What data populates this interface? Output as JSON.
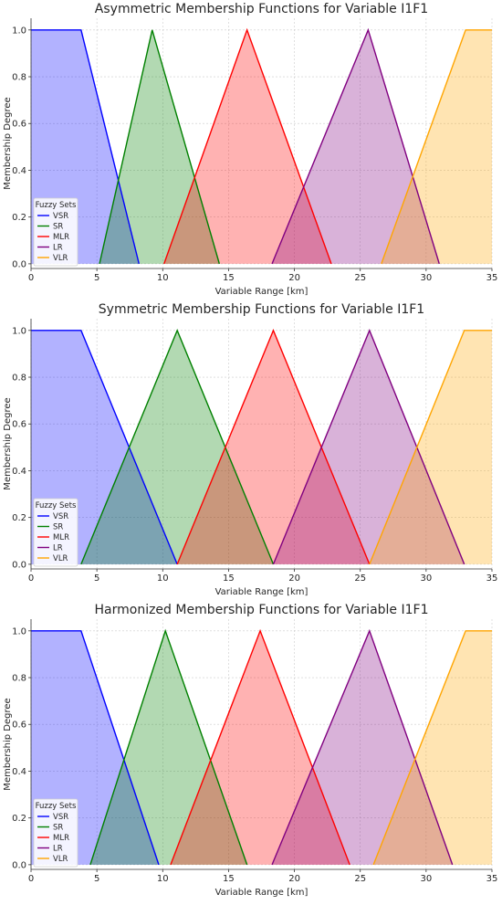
{
  "figure": {
    "colors": {
      "VSR": "#0000ff",
      "SR": "#008000",
      "MLR": "#ff0000",
      "LR": "#800080",
      "VLR": "#ffa500"
    }
  },
  "chart_data": [
    {
      "type": "area",
      "title": "Asymmetric Membership Functions for Variable I1F1",
      "xlabel": "Variable Range [km]",
      "ylabel": "Membership Degree",
      "xlim": [
        0,
        35
      ],
      "ylim": [
        -0.02,
        1.05
      ],
      "xticks": [
        "0",
        "5",
        "10",
        "15",
        "20",
        "25",
        "30",
        "35"
      ],
      "yticks": [
        "0.0",
        "0.2",
        "0.4",
        "0.6",
        "0.8",
        "1.0"
      ],
      "grid": true,
      "legend": {
        "title": "Fuzzy Sets",
        "placement": "bottom-left"
      },
      "series": [
        {
          "name": "VSR",
          "color": "#0000ff",
          "points": [
            [
              0,
              1.0
            ],
            [
              3.8,
              1.0
            ],
            [
              8.2,
              0
            ]
          ]
        },
        {
          "name": "SR",
          "color": "#008000",
          "points": [
            [
              5.2,
              0
            ],
            [
              9.2,
              1.0
            ],
            [
              14.3,
              0
            ]
          ]
        },
        {
          "name": "MLR",
          "color": "#ff0000",
          "points": [
            [
              10.1,
              0
            ],
            [
              16.4,
              1.0
            ],
            [
              22.8,
              0
            ]
          ]
        },
        {
          "name": "LR",
          "color": "#800080",
          "points": [
            [
              18.3,
              0
            ],
            [
              25.6,
              1.0
            ],
            [
              31.0,
              0
            ]
          ]
        },
        {
          "name": "VLR",
          "color": "#ffa500",
          "points": [
            [
              26.6,
              0
            ],
            [
              33.0,
              1.0
            ],
            [
              35.0,
              1.0
            ]
          ]
        }
      ]
    },
    {
      "type": "area",
      "title": "Symmetric Membership Functions for Variable I1F1",
      "xlabel": "Variable Range [km]",
      "ylabel": "Membership Degree",
      "xlim": [
        0,
        35
      ],
      "ylim": [
        -0.02,
        1.05
      ],
      "xticks": [
        "0",
        "5",
        "10",
        "15",
        "20",
        "25",
        "30",
        "35"
      ],
      "yticks": [
        "0.0",
        "0.2",
        "0.4",
        "0.6",
        "0.8",
        "1.0"
      ],
      "grid": true,
      "legend": {
        "title": "Fuzzy Sets",
        "placement": "bottom-left"
      },
      "series": [
        {
          "name": "VSR",
          "color": "#0000ff",
          "points": [
            [
              0,
              1.0
            ],
            [
              3.8,
              1.0
            ],
            [
              11.1,
              0
            ]
          ]
        },
        {
          "name": "SR",
          "color": "#008000",
          "points": [
            [
              3.8,
              0
            ],
            [
              11.1,
              1.0
            ],
            [
              18.4,
              0
            ]
          ]
        },
        {
          "name": "MLR",
          "color": "#ff0000",
          "points": [
            [
              11.1,
              0
            ],
            [
              18.4,
              1.0
            ],
            [
              25.7,
              0
            ]
          ]
        },
        {
          "name": "LR",
          "color": "#800080",
          "points": [
            [
              18.4,
              0
            ],
            [
              25.7,
              1.0
            ],
            [
              32.9,
              0
            ]
          ]
        },
        {
          "name": "VLR",
          "color": "#ffa500",
          "points": [
            [
              25.7,
              0
            ],
            [
              32.9,
              1.0
            ],
            [
              35.0,
              1.0
            ]
          ]
        }
      ]
    },
    {
      "type": "area",
      "title": "Harmonized Membership Functions for Variable I1F1",
      "xlabel": "Variable Range [km]",
      "ylabel": "Membership Degree",
      "xlim": [
        0,
        35
      ],
      "ylim": [
        -0.02,
        1.05
      ],
      "xticks": [
        "0",
        "5",
        "10",
        "15",
        "20",
        "25",
        "30",
        "35"
      ],
      "yticks": [
        "0.0",
        "0.2",
        "0.4",
        "0.6",
        "0.8",
        "1.0"
      ],
      "grid": true,
      "legend": {
        "title": "Fuzzy Sets",
        "placement": "bottom-left"
      },
      "series": [
        {
          "name": "VSR",
          "color": "#0000ff",
          "points": [
            [
              0,
              1.0
            ],
            [
              3.8,
              1.0
            ],
            [
              9.7,
              0
            ]
          ]
        },
        {
          "name": "SR",
          "color": "#008000",
          "points": [
            [
              4.5,
              0
            ],
            [
              10.2,
              1.0
            ],
            [
              16.4,
              0
            ]
          ]
        },
        {
          "name": "MLR",
          "color": "#ff0000",
          "points": [
            [
              10.6,
              0
            ],
            [
              17.4,
              1.0
            ],
            [
              24.2,
              0
            ]
          ]
        },
        {
          "name": "LR",
          "color": "#800080",
          "points": [
            [
              18.3,
              0
            ],
            [
              25.7,
              1.0
            ],
            [
              32.0,
              0
            ]
          ]
        },
        {
          "name": "VLR",
          "color": "#ffa500",
          "points": [
            [
              26.0,
              0
            ],
            [
              33.0,
              1.0
            ],
            [
              35.0,
              1.0
            ]
          ]
        }
      ]
    }
  ]
}
